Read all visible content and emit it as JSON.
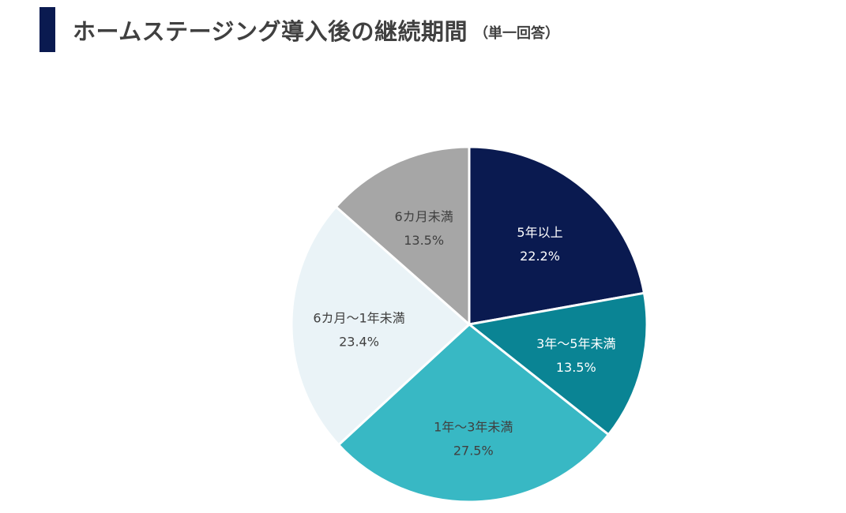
{
  "title": {
    "main": "ホームステージング導入後の継続期間",
    "sub": "（単一回答）"
  },
  "chart_data": {
    "type": "pie",
    "title": "ホームステージング導入後の継続期間",
    "categories": [
      "5年以上",
      "3年～5年未満",
      "1年～3年未満",
      "6カ月～1年未満",
      "6カ月未満"
    ],
    "values": [
      22.2,
      13.5,
      27.5,
      23.4,
      13.5
    ],
    "value_labels": [
      "22.2%",
      "13.5%",
      "27.5%",
      "23.4%",
      "13.5%"
    ],
    "colors": [
      "#0a1a50",
      "#0a8494",
      "#38b8c4",
      "#eaf3f7",
      "#a6a6a6"
    ],
    "label_colors": [
      "#ffffff",
      "#ffffff",
      "#404040",
      "#404040",
      "#404040"
    ],
    "start": "12 o'clock",
    "direction": "clockwise",
    "legend": "none"
  }
}
